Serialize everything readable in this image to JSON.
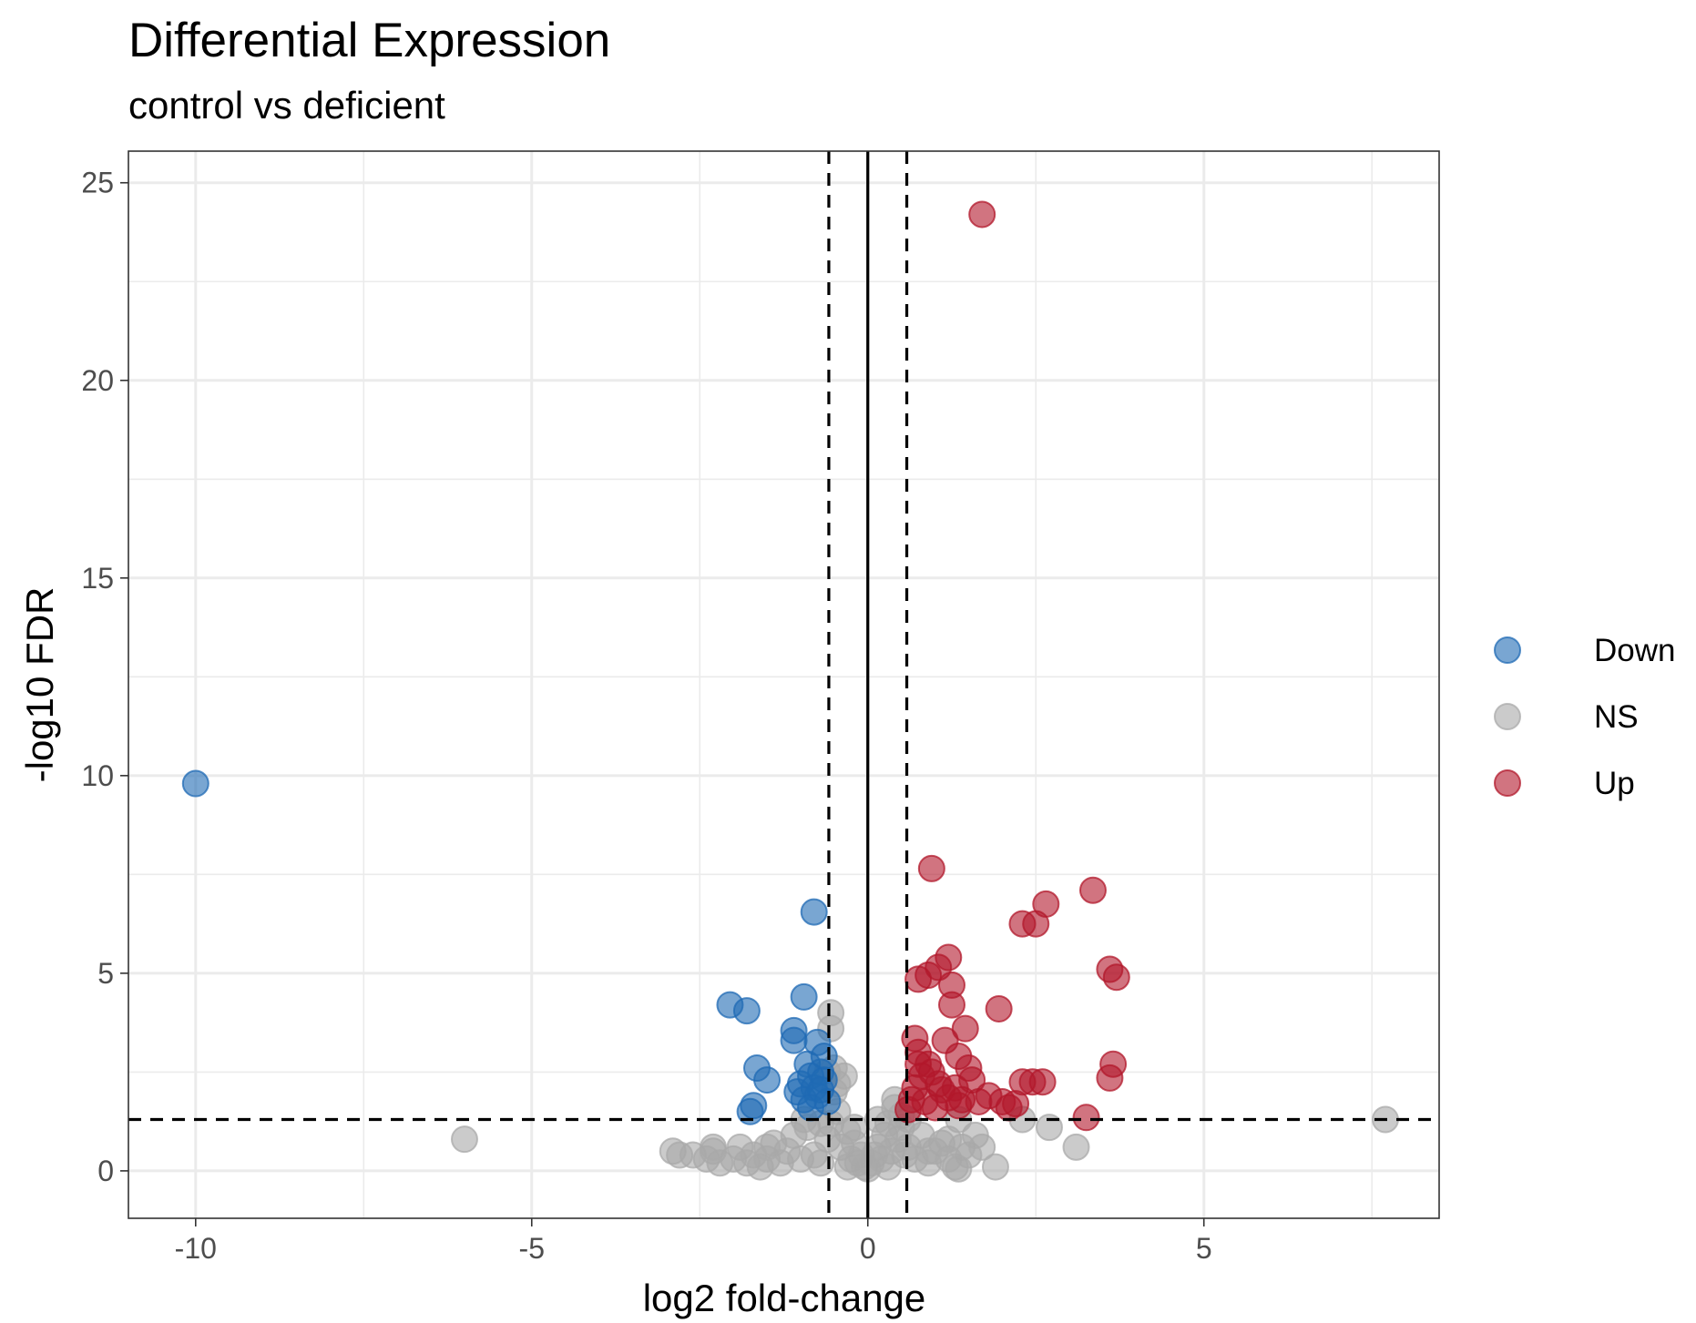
{
  "chart_data": {
    "type": "scatter",
    "title": "Differential Expression",
    "subtitle": "control vs deficient",
    "xlabel": "log2 fold-change",
    "ylabel": "-log10 FDR",
    "xlim": [
      -11,
      8.5
    ],
    "ylim": [
      -1.2,
      25.8
    ],
    "x_ticks": [
      -10,
      -5,
      0,
      5
    ],
    "x_tick_labels": [
      "-10",
      "-5",
      "0",
      "5"
    ],
    "y_ticks": [
      0,
      5,
      10,
      15,
      20,
      25
    ],
    "y_tick_labels": [
      "0",
      "5",
      "10",
      "15",
      "20",
      "25"
    ],
    "grid": true,
    "legend_position": "right",
    "thresholds": {
      "x": [
        -0.58,
        0.58
      ],
      "y": 1.3,
      "zero_line": 0
    },
    "series": [
      {
        "name": "NS",
        "color": "#A9A9A9",
        "points": [
          [
            -6.0,
            0.8
          ],
          [
            -2.9,
            0.5
          ],
          [
            -2.8,
            0.4
          ],
          [
            -2.6,
            0.4
          ],
          [
            -2.4,
            0.3
          ],
          [
            -2.3,
            0.5
          ],
          [
            -2.2,
            0.2
          ],
          [
            -2.0,
            0.3
          ],
          [
            -1.9,
            0.6
          ],
          [
            -1.8,
            0.2
          ],
          [
            -1.7,
            0.4
          ],
          [
            -1.6,
            0.1
          ],
          [
            -1.5,
            0.3
          ],
          [
            -1.4,
            0.7
          ],
          [
            -1.3,
            0.2
          ],
          [
            -1.2,
            0.5
          ],
          [
            -1.1,
            0.9
          ],
          [
            -1.0,
            0.3
          ],
          [
            -0.9,
            1.1
          ],
          [
            -0.8,
            0.4
          ],
          [
            -0.7,
            0.2
          ],
          [
            -0.6,
            0.8
          ],
          [
            -0.55,
            1.2
          ],
          [
            -0.5,
            2.0
          ],
          [
            -0.45,
            1.5
          ],
          [
            -0.4,
            0.6
          ],
          [
            -0.35,
            2.4
          ],
          [
            -0.3,
            1.0
          ],
          [
            -0.25,
            0.3
          ],
          [
            -0.2,
            0.7
          ],
          [
            -0.15,
            0.2
          ],
          [
            -0.1,
            0.4
          ],
          [
            -0.05,
            0.1
          ],
          [
            0.0,
            0.05
          ],
          [
            0.05,
            0.2
          ],
          [
            0.1,
            0.4
          ],
          [
            0.15,
            0.6
          ],
          [
            0.2,
            0.3
          ],
          [
            0.25,
            0.9
          ],
          [
            0.3,
            1.2
          ],
          [
            0.35,
            0.5
          ],
          [
            0.4,
            1.6
          ],
          [
            0.45,
            0.8
          ],
          [
            0.5,
            1.1
          ],
          [
            0.55,
            0.4
          ],
          [
            0.6,
            0.6
          ],
          [
            0.7,
            0.3
          ],
          [
            0.8,
            0.9
          ],
          [
            0.9,
            0.2
          ],
          [
            1.0,
            0.5
          ],
          [
            1.1,
            0.7
          ],
          [
            1.2,
            0.3
          ],
          [
            1.3,
            0.1
          ],
          [
            1.4,
            0.6
          ],
          [
            1.5,
            0.4
          ],
          [
            1.6,
            0.9
          ],
          [
            1.7,
            0.6
          ],
          [
            1.9,
            0.1
          ],
          [
            2.3,
            1.3
          ],
          [
            2.7,
            1.1
          ],
          [
            3.1,
            0.6
          ],
          [
            7.7,
            1.3
          ],
          [
            -0.55,
            3.6
          ],
          [
            -0.55,
            4.0
          ],
          [
            -0.5,
            2.6
          ],
          [
            -0.45,
            2.2
          ],
          [
            -0.6,
            2.5
          ],
          [
            0.4,
            1.8
          ],
          [
            0.5,
            1.4
          ],
          [
            -2.3,
            0.6
          ],
          [
            -1.5,
            0.6
          ],
          [
            -0.95,
            1.3
          ],
          [
            1.35,
            1.3
          ],
          [
            1.2,
            0.8
          ],
          [
            0.9,
            0.5
          ],
          [
            -0.3,
            0.1
          ],
          [
            0.3,
            0.1
          ],
          [
            -0.2,
            1.1
          ],
          [
            0.15,
            1.3
          ],
          [
            0.6,
            1.3
          ],
          [
            -0.7,
            1.2
          ],
          [
            1.35,
            0.05
          ]
        ]
      },
      {
        "name": "Down",
        "color": "#1F6AB4",
        "points": [
          [
            -10.0,
            9.8
          ],
          [
            -0.8,
            6.55
          ],
          [
            -2.05,
            4.2
          ],
          [
            -1.8,
            4.05
          ],
          [
            -0.95,
            4.4
          ],
          [
            -1.1,
            3.55
          ],
          [
            -1.1,
            3.3
          ],
          [
            -0.75,
            3.25
          ],
          [
            -1.65,
            2.6
          ],
          [
            -1.5,
            2.3
          ],
          [
            -1.05,
            2.0
          ],
          [
            -1.0,
            2.2
          ],
          [
            -0.9,
            2.7
          ],
          [
            -0.85,
            2.4
          ],
          [
            -0.8,
            2.1
          ],
          [
            -0.75,
            1.9
          ],
          [
            -0.7,
            2.5
          ],
          [
            -0.65,
            2.3
          ],
          [
            -0.95,
            1.8
          ],
          [
            -0.85,
            1.6
          ],
          [
            -1.7,
            1.65
          ],
          [
            -1.75,
            1.5
          ],
          [
            -0.65,
            2.9
          ],
          [
            -0.7,
            2.05
          ],
          [
            -0.6,
            1.75
          ]
        ]
      },
      {
        "name": "Up",
        "color": "#B2182B",
        "points": [
          [
            1.7,
            24.2
          ],
          [
            0.95,
            7.65
          ],
          [
            3.35,
            7.1
          ],
          [
            2.65,
            6.75
          ],
          [
            2.3,
            6.25
          ],
          [
            2.5,
            6.25
          ],
          [
            3.6,
            5.1
          ],
          [
            3.7,
            4.9
          ],
          [
            1.2,
            5.4
          ],
          [
            1.05,
            5.15
          ],
          [
            0.9,
            4.95
          ],
          [
            0.75,
            4.85
          ],
          [
            1.25,
            4.7
          ],
          [
            1.25,
            4.2
          ],
          [
            1.95,
            4.1
          ],
          [
            1.45,
            3.6
          ],
          [
            0.7,
            3.35
          ],
          [
            1.15,
            3.3
          ],
          [
            0.75,
            3.0
          ],
          [
            1.35,
            2.9
          ],
          [
            0.9,
            2.7
          ],
          [
            1.5,
            2.6
          ],
          [
            3.65,
            2.7
          ],
          [
            3.6,
            2.35
          ],
          [
            2.6,
            2.25
          ],
          [
            2.45,
            2.25
          ],
          [
            2.3,
            2.25
          ],
          [
            1.55,
            2.3
          ],
          [
            1.05,
            2.2
          ],
          [
            0.7,
            2.1
          ],
          [
            0.8,
            2.4
          ],
          [
            0.95,
            2.5
          ],
          [
            1.1,
            2.05
          ],
          [
            1.2,
            1.85
          ],
          [
            1.3,
            2.1
          ],
          [
            1.4,
            1.8
          ],
          [
            1.65,
            1.75
          ],
          [
            2.0,
            1.75
          ],
          [
            2.1,
            1.6
          ],
          [
            2.2,
            1.7
          ],
          [
            0.65,
            1.8
          ],
          [
            0.85,
            1.75
          ],
          [
            1.0,
            1.6
          ],
          [
            3.25,
            1.35
          ],
          [
            1.8,
            1.9
          ],
          [
            1.35,
            1.65
          ],
          [
            0.75,
            2.7
          ],
          [
            0.6,
            1.55
          ]
        ]
      }
    ],
    "legend": [
      {
        "label": "Down",
        "color": "#1F6AB4"
      },
      {
        "label": "NS",
        "color": "#A9A9A9"
      },
      {
        "label": "Up",
        "color": "#B2182B"
      }
    ]
  }
}
